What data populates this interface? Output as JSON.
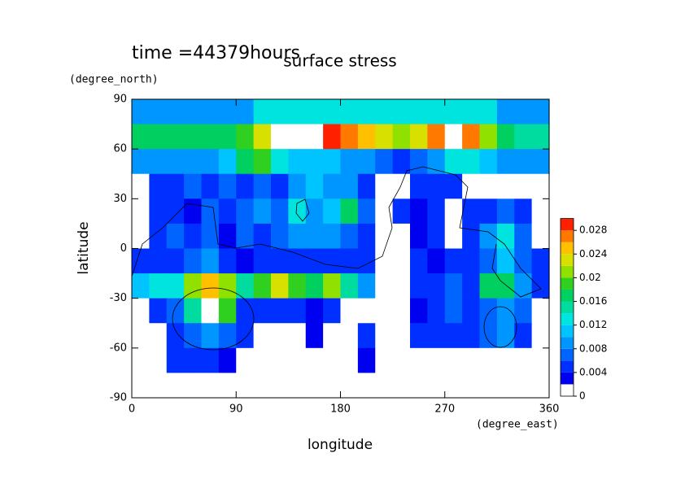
{
  "chart_data": {
    "type": "contour",
    "title": "surface stress",
    "subtitle": "time =44379hours",
    "xlabel": "longitude",
    "ylabel": "latitude",
    "xunit": "(degree_east)",
    "yunit": "(degree_north)",
    "xlim": [
      0,
      360
    ],
    "ylim": [
      -90,
      90
    ],
    "xticks": [
      0,
      90,
      180,
      270,
      360
    ],
    "yticks": [
      -90,
      -60,
      -30,
      0,
      30,
      60,
      90
    ],
    "x": [
      7.5,
      22.5,
      37.5,
      52.5,
      67.5,
      82.5,
      97.5,
      112.5,
      127.5,
      142.5,
      157.5,
      172.5,
      187.5,
      202.5,
      217.5,
      232.5,
      247.5,
      262.5,
      277.5,
      292.5,
      307.5,
      322.5,
      337.5,
      352.5
    ],
    "y": [
      82.5,
      67.5,
      52.5,
      37.5,
      22.5,
      7.5,
      -7.5,
      -22.5,
      -37.5,
      -52.5,
      -67.5,
      -82.5
    ],
    "z": [
      [
        0.008,
        0.008,
        0.008,
        0.008,
        0.008,
        0.008,
        0.008,
        0.012,
        0.012,
        0.012,
        0.012,
        0.012,
        0.012,
        0.012,
        0.012,
        0.012,
        0.012,
        0.012,
        0.012,
        0.012,
        0.012,
        0.008,
        0.008,
        0.008
      ],
      [
        0.016,
        0.016,
        0.016,
        0.016,
        0.016,
        0.016,
        0.018,
        0.022,
        0.032,
        0.032,
        0.032,
        0.028,
        0.026,
        0.024,
        0.022,
        0.02,
        0.022,
        0.026,
        0.032,
        0.026,
        0.02,
        0.016,
        0.014,
        0.014
      ],
      [
        0.008,
        0.008,
        0.008,
        0.008,
        0.008,
        0.01,
        0.016,
        0.018,
        0.012,
        0.01,
        0.01,
        0.01,
        0.008,
        0.008,
        0.006,
        0.004,
        0.006,
        0.008,
        0.012,
        0.012,
        0.01,
        0.008,
        0.008,
        0.008
      ],
      [
        0,
        0.004,
        0.004,
        0.006,
        0.004,
        0.006,
        0.004,
        0.006,
        0.004,
        0.008,
        0.01,
        0.008,
        0.008,
        0.004,
        0,
        0,
        0.004,
        0.004,
        0.004,
        0,
        0,
        0,
        0,
        0
      ],
      [
        0,
        0.004,
        0.004,
        0.002,
        0.006,
        0.004,
        0.006,
        0.008,
        0.006,
        0.012,
        0.008,
        0.01,
        0.016,
        0.006,
        0,
        0.004,
        0.002,
        0.004,
        0,
        0.004,
        0.004,
        0.006,
        0.004,
        0
      ],
      [
        0,
        0.004,
        0.006,
        0.004,
        0.006,
        0.002,
        0.006,
        0.004,
        0.006,
        0.008,
        0.008,
        0.008,
        0.006,
        0.004,
        0,
        0,
        0.002,
        0.004,
        0,
        0.004,
        0.008,
        0.012,
        0.006,
        0
      ],
      [
        0.004,
        0.004,
        0.004,
        0.006,
        0.008,
        0.004,
        0.002,
        0.004,
        0.004,
        0.004,
        0.004,
        0.004,
        0.004,
        0.004,
        0,
        0,
        0.004,
        0.002,
        0.004,
        0.004,
        0.006,
        0.01,
        0.006,
        0.004
      ],
      [
        0.01,
        0.012,
        0.012,
        0.02,
        0.024,
        0.02,
        0.014,
        0.018,
        0.022,
        0.018,
        0.016,
        0.02,
        0.014,
        0.008,
        0,
        0,
        0.004,
        0.004,
        0.006,
        0.004,
        0.016,
        0.016,
        0.008,
        0.004
      ],
      [
        0,
        0.004,
        0.006,
        0.014,
        0.03,
        0.018,
        0.004,
        0.004,
        0.004,
        0.004,
        0.002,
        0.004,
        0,
        0,
        0,
        0,
        0.002,
        0.004,
        0.006,
        0.004,
        0.006,
        0.008,
        0.006,
        0
      ],
      [
        0,
        0,
        0.004,
        0.006,
        0.008,
        0.006,
        0.004,
        0,
        0,
        0,
        0.002,
        0,
        0,
        0.004,
        0,
        0,
        0.004,
        0.004,
        0.004,
        0.004,
        0.006,
        0.008,
        0.004,
        0
      ],
      [
        0,
        0,
        0.004,
        0.004,
        0.004,
        0.002,
        0,
        0,
        0,
        0,
        0,
        0,
        0,
        0.002,
        0,
        0,
        0,
        0,
        0,
        0,
        0,
        0,
        0,
        0
      ],
      [
        0,
        0,
        0,
        0,
        0,
        0,
        0,
        0,
        0,
        0,
        0,
        0,
        0,
        0,
        0,
        0,
        0,
        0,
        0,
        0,
        0,
        0,
        0,
        0
      ]
    ],
    "levels": [
      0,
      0.002,
      0.004,
      0.006,
      0.008,
      0.01,
      0.012,
      0.014,
      0.016,
      0.018,
      0.02,
      0.022,
      0.024,
      0.026,
      0.028,
      0.03
    ],
    "colors": [
      "#ffffff",
      "#0000f0",
      "#0030ff",
      "#0064ff",
      "#0096ff",
      "#00c4ff",
      "#00e4e0",
      "#00dca0",
      "#00d060",
      "#30d020",
      "#90e000",
      "#d8e000",
      "#ffc000",
      "#ff7800",
      "#ff2000"
    ],
    "over_color": "#ffffff",
    "clim": [
      0,
      0.03
    ],
    "cticks": [
      0,
      0.004,
      0.008,
      0.012,
      0.016,
      0.02,
      0.024,
      0.028
    ]
  }
}
